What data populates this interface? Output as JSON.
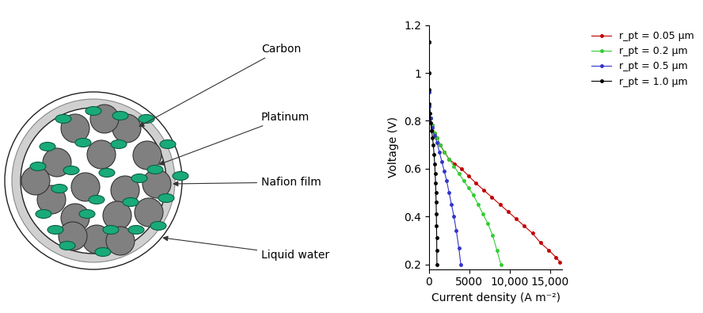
{
  "diagram": {
    "labels": [
      "Carbon",
      "Platinum",
      "Nafion film",
      "Liquid water"
    ]
  },
  "chart_data": {
    "type": "line",
    "xlabel": "Current density (A m⁻²)",
    "ylabel": "Voltage (V)",
    "xlim": [
      0,
      16500
    ],
    "ylim": [
      0.18,
      1.2
    ],
    "xticks": [
      0,
      5000,
      {
        "value": 10000,
        "label": "10,000"
      },
      {
        "value": 15000,
        "label": "15,000"
      }
    ],
    "yticks": [
      0.2,
      0.4,
      0.6,
      0.8,
      1,
      1.2
    ],
    "legend": "upper right",
    "grid": false,
    "marker": "o",
    "line_style": "solid",
    "series": [
      {
        "name": "r_pt = 0.05 μm",
        "color": "#c00000",
        "x": [
          0,
          10,
          30,
          80,
          200,
          400,
          700,
          1000,
          1400,
          1900,
          2500,
          3200,
          4000,
          4900,
          5800,
          6800,
          7800,
          8800,
          9800,
          10800,
          11800,
          12800,
          13800,
          14800,
          15700,
          16200
        ],
        "values": [
          1.13,
          1.0,
          0.92,
          0.86,
          0.81,
          0.78,
          0.75,
          0.73,
          0.7,
          0.67,
          0.64,
          0.62,
          0.6,
          0.57,
          0.54,
          0.51,
          0.48,
          0.45,
          0.42,
          0.39,
          0.36,
          0.33,
          0.29,
          0.26,
          0.23,
          0.21
        ]
      },
      {
        "name": "r_pt = 0.2 μm",
        "color": "#33cc33",
        "x": [
          0,
          10,
          30,
          80,
          200,
          400,
          700,
          1000,
          1400,
          1900,
          2500,
          3100,
          3700,
          4300,
          4900,
          5500,
          6100,
          6700,
          7300,
          7900,
          8400,
          8900
        ],
        "values": [
          1.13,
          1.0,
          0.92,
          0.86,
          0.81,
          0.78,
          0.75,
          0.73,
          0.7,
          0.67,
          0.64,
          0.61,
          0.58,
          0.55,
          0.52,
          0.49,
          0.45,
          0.41,
          0.37,
          0.32,
          0.26,
          0.2
        ]
      },
      {
        "name": "r_pt = 0.5 μm",
        "color": "#3333cc",
        "x": [
          0,
          10,
          30,
          80,
          200,
          400,
          700,
          1000,
          1300,
          1600,
          1900,
          2200,
          2500,
          2800,
          3100,
          3400,
          3700,
          3950
        ],
        "values": [
          1.13,
          1.0,
          0.92,
          0.86,
          0.81,
          0.77,
          0.74,
          0.71,
          0.67,
          0.63,
          0.59,
          0.55,
          0.5,
          0.45,
          0.4,
          0.34,
          0.27,
          0.2
        ]
      },
      {
        "name": "r_pt = 1.0 μm",
        "color": "#000000",
        "x": [
          0,
          10,
          30,
          80,
          150,
          250,
          350,
          450,
          550,
          650,
          720,
          780,
          830,
          870,
          900,
          930,
          950,
          970,
          985,
          1000
        ],
        "values": [
          1.13,
          1.0,
          0.93,
          0.87,
          0.83,
          0.79,
          0.76,
          0.73,
          0.7,
          0.66,
          0.62,
          0.58,
          0.54,
          0.5,
          0.46,
          0.41,
          0.36,
          0.31,
          0.26,
          0.2
        ]
      }
    ]
  }
}
